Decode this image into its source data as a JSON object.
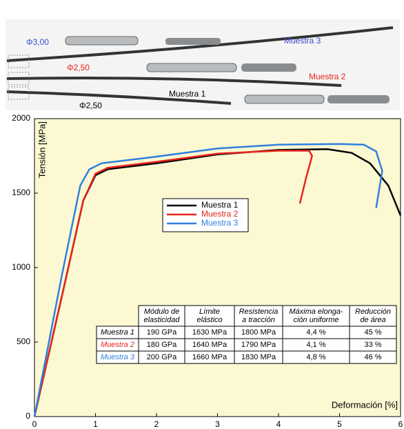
{
  "chart_data": {
    "type": "line",
    "x_label": "Deformación [%]",
    "y_label": "Tensión [MPa]",
    "xlim": [
      0,
      6
    ],
    "ylim": [
      0,
      2000
    ],
    "xticks": [
      0,
      1,
      2,
      3,
      4,
      5,
      6
    ],
    "yticks": [
      0,
      500,
      1000,
      1500,
      2000
    ],
    "background": "#fbf8d2",
    "series": [
      {
        "name": "Muestra 1",
        "color": "#000000",
        "x": [
          0,
          0.5,
          0.8,
          1,
          1.2,
          2,
          3,
          4,
          4.8,
          5.2,
          5.5,
          5.8,
          6
        ],
        "values": [
          0,
          900,
          1450,
          1620,
          1660,
          1700,
          1760,
          1790,
          1795,
          1770,
          1700,
          1550,
          1350
        ]
      },
      {
        "name": "Muestra 2",
        "color": "#e8231c",
        "x": [
          0,
          0.5,
          0.8,
          1,
          1.2,
          2,
          3,
          4,
          4.5,
          4.55,
          4.45,
          4.35
        ],
        "values": [
          0,
          900,
          1450,
          1630,
          1670,
          1710,
          1765,
          1785,
          1785,
          1750,
          1600,
          1430
        ]
      },
      {
        "name": "Muestra 3",
        "color": "#2f7fe0",
        "x": [
          0,
          0.45,
          0.75,
          0.9,
          1.1,
          2,
          3,
          4,
          5,
          5.4,
          5.6,
          5.7,
          5.6
        ],
        "values": [
          0,
          950,
          1550,
          1660,
          1700,
          1745,
          1800,
          1825,
          1830,
          1825,
          1780,
          1650,
          1400
        ]
      }
    ],
    "table": {
      "columns": [
        [
          "Módulo de",
          "elasticidad"
        ],
        [
          "Límite",
          "elástico"
        ],
        [
          "Resistencia",
          "a tracción"
        ],
        [
          "Máxima elonga-",
          "ción uniforme"
        ],
        [
          "Reducción",
          "de área"
        ]
      ],
      "rows": [
        {
          "label": "Muestra 1",
          "color": "#000000",
          "cells": [
            "190 GPa",
            "1630 MPa",
            "1800 MPa",
            "4,4 %",
            "45 %"
          ]
        },
        {
          "label": "Muestra 2",
          "color": "#e8231c",
          "cells": [
            "180 GPa",
            "1640 MPa",
            "1790 MPa",
            "4,1 %",
            "33 %"
          ]
        },
        {
          "label": "Muestra 3",
          "color": "#2f7fe0",
          "cells": [
            "200 GPa",
            "1660 MPa",
            "1830 MPa",
            "4,8 %",
            "46 %"
          ]
        }
      ]
    },
    "annotations": [
      {
        "text": "Φ3,00",
        "color": "#3a4ad0"
      },
      {
        "text": "Muestra 3",
        "color": "#3a4ad0"
      },
      {
        "text": "Φ2,50",
        "color": "#e8231c"
      },
      {
        "text": "Muestra 2",
        "color": "#e8231c"
      },
      {
        "text": "Muestra 1",
        "color": "#000000"
      },
      {
        "text": "Φ2,50",
        "color": "#000000"
      }
    ]
  }
}
